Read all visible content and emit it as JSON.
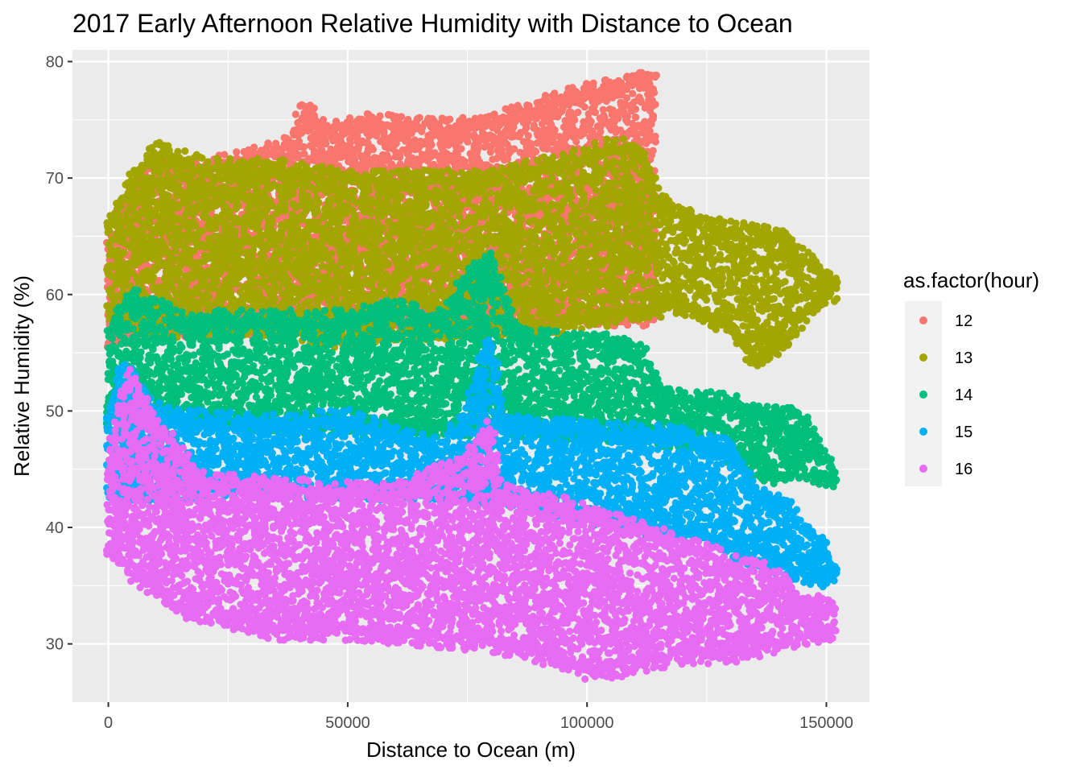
{
  "chart_data": {
    "type": "scatter",
    "title": "2017 Early Afternoon Relative Humidity with Distance to Ocean",
    "xlabel": "Distance to Ocean (m)",
    "ylabel": "Relative Humidity (%)",
    "xlim": [
      -7500,
      159000
    ],
    "ylim": [
      25,
      81
    ],
    "x_ticks": [
      0,
      50000,
      100000,
      150000
    ],
    "x_tick_labels": [
      "0",
      "50000",
      "100000",
      "150000"
    ],
    "y_ticks": [
      30,
      40,
      50,
      60,
      70,
      80
    ],
    "y_tick_labels": [
      "30",
      "40",
      "50",
      "60",
      "70",
      "80"
    ],
    "grid": true,
    "legend": {
      "title": "as.factor(hour)",
      "position": "right"
    },
    "series": [
      {
        "name": "12",
        "color": "#F8766D",
        "upper": [
          [
            0,
            64
          ],
          [
            5000,
            69
          ],
          [
            10000,
            71
          ],
          [
            20000,
            71
          ],
          [
            30000,
            72
          ],
          [
            38000,
            73
          ],
          [
            41000,
            76.5
          ],
          [
            45000,
            74
          ],
          [
            55000,
            75
          ],
          [
            65000,
            74.5
          ],
          [
            75000,
            74.5
          ],
          [
            85000,
            75.5
          ],
          [
            95000,
            77
          ],
          [
            105000,
            78
          ],
          [
            114000,
            79
          ]
        ],
        "lower": [
          [
            0,
            56
          ],
          [
            10000,
            57
          ],
          [
            30000,
            57
          ],
          [
            50000,
            58
          ],
          [
            70000,
            58
          ],
          [
            90000,
            58
          ],
          [
            105000,
            58
          ],
          [
            120000,
            58
          ],
          [
            130000,
            57
          ],
          [
            138000,
            53
          ],
          [
            145000,
            53
          ],
          [
            150000,
            60
          ],
          [
            152000,
            61
          ]
        ]
      },
      {
        "name": "13",
        "color": "#A3A500",
        "upper": [
          [
            0,
            66
          ],
          [
            5000,
            70
          ],
          [
            10000,
            72.5
          ],
          [
            20000,
            71
          ],
          [
            35000,
            71
          ],
          [
            50000,
            70
          ],
          [
            65000,
            70
          ],
          [
            80000,
            70
          ],
          [
            90000,
            71
          ],
          [
            100000,
            72
          ],
          [
            105000,
            73
          ],
          [
            112000,
            72
          ],
          [
            115000,
            68
          ],
          [
            125000,
            66
          ],
          [
            140000,
            65
          ],
          [
            150000,
            62
          ],
          [
            152000,
            61
          ]
        ],
        "lower": [
          [
            0,
            58
          ],
          [
            10000,
            57
          ],
          [
            30000,
            57
          ],
          [
            50000,
            56
          ],
          [
            60000,
            56.5
          ],
          [
            75000,
            57
          ],
          [
            90000,
            57
          ],
          [
            105000,
            58
          ],
          [
            120000,
            59
          ],
          [
            130000,
            57
          ],
          [
            135000,
            54
          ],
          [
            140000,
            55
          ],
          [
            145000,
            58
          ],
          [
            150000,
            60
          ],
          [
            152000,
            60
          ]
        ]
      },
      {
        "name": "14",
        "color": "#00BF7D",
        "upper": [
          [
            0,
            57
          ],
          [
            5000,
            60
          ],
          [
            15000,
            58
          ],
          [
            30000,
            58
          ],
          [
            50000,
            58
          ],
          [
            60000,
            59
          ],
          [
            70000,
            58
          ],
          [
            75000,
            62
          ],
          [
            80000,
            63
          ],
          [
            85000,
            57
          ],
          [
            95000,
            56
          ],
          [
            105000,
            56
          ],
          [
            112000,
            55
          ],
          [
            115000,
            52
          ],
          [
            120000,
            51
          ],
          [
            130000,
            51
          ],
          [
            135000,
            50
          ],
          [
            145000,
            49.5
          ],
          [
            150000,
            46
          ],
          [
            152000,
            44
          ]
        ],
        "lower": [
          [
            0,
            49
          ],
          [
            10000,
            49
          ],
          [
            30000,
            49
          ],
          [
            50000,
            48.5
          ],
          [
            70000,
            48.5
          ],
          [
            80000,
            48.5
          ],
          [
            95000,
            48
          ],
          [
            110000,
            48
          ],
          [
            125000,
            47
          ],
          [
            135000,
            45
          ],
          [
            140000,
            44
          ],
          [
            145000,
            45
          ],
          [
            150000,
            44
          ],
          [
            152000,
            44
          ]
        ]
      },
      {
        "name": "15",
        "color": "#00B0F6",
        "upper": [
          [
            0,
            50
          ],
          [
            3000,
            54
          ],
          [
            10000,
            50
          ],
          [
            30000,
            49
          ],
          [
            50000,
            49.5
          ],
          [
            60000,
            48
          ],
          [
            70000,
            47
          ],
          [
            75000,
            50
          ],
          [
            78000,
            55
          ],
          [
            80000,
            56
          ],
          [
            83000,
            49
          ],
          [
            100000,
            48.5
          ],
          [
            120000,
            48
          ],
          [
            130000,
            47
          ],
          [
            135000,
            43
          ],
          [
            142000,
            42
          ],
          [
            145000,
            40
          ],
          [
            150000,
            38
          ],
          [
            152000,
            36
          ]
        ],
        "lower": [
          [
            0,
            43
          ],
          [
            15000,
            43
          ],
          [
            30000,
            43.5
          ],
          [
            50000,
            43
          ],
          [
            70000,
            43
          ],
          [
            90000,
            42
          ],
          [
            110000,
            40
          ],
          [
            125000,
            39
          ],
          [
            135000,
            37
          ],
          [
            145000,
            36
          ],
          [
            150000,
            35.5
          ],
          [
            152000,
            36
          ]
        ]
      },
      {
        "name": "16",
        "color": "#E76BF3",
        "upper": [
          [
            0,
            46
          ],
          [
            3000,
            52
          ],
          [
            5000,
            53
          ],
          [
            10000,
            49
          ],
          [
            20000,
            44
          ],
          [
            40000,
            43.5
          ],
          [
            60000,
            43
          ],
          [
            75000,
            46
          ],
          [
            80000,
            49
          ],
          [
            82000,
            43
          ],
          [
            95000,
            42
          ],
          [
            110000,
            40
          ],
          [
            125000,
            38
          ],
          [
            130000,
            37
          ],
          [
            140000,
            36
          ],
          [
            145000,
            34
          ],
          [
            152000,
            33
          ]
        ],
        "lower": [
          [
            0,
            38
          ],
          [
            5000,
            36
          ],
          [
            15000,
            33
          ],
          [
            25000,
            32
          ],
          [
            35000,
            31
          ],
          [
            50000,
            31
          ],
          [
            65000,
            30.5
          ],
          [
            80000,
            30
          ],
          [
            95000,
            28.5
          ],
          [
            100000,
            27.5
          ],
          [
            110000,
            28
          ],
          [
            120000,
            29
          ],
          [
            130000,
            29
          ],
          [
            140000,
            30
          ],
          [
            150000,
            31
          ],
          [
            152000,
            31
          ]
        ]
      }
    ]
  }
}
